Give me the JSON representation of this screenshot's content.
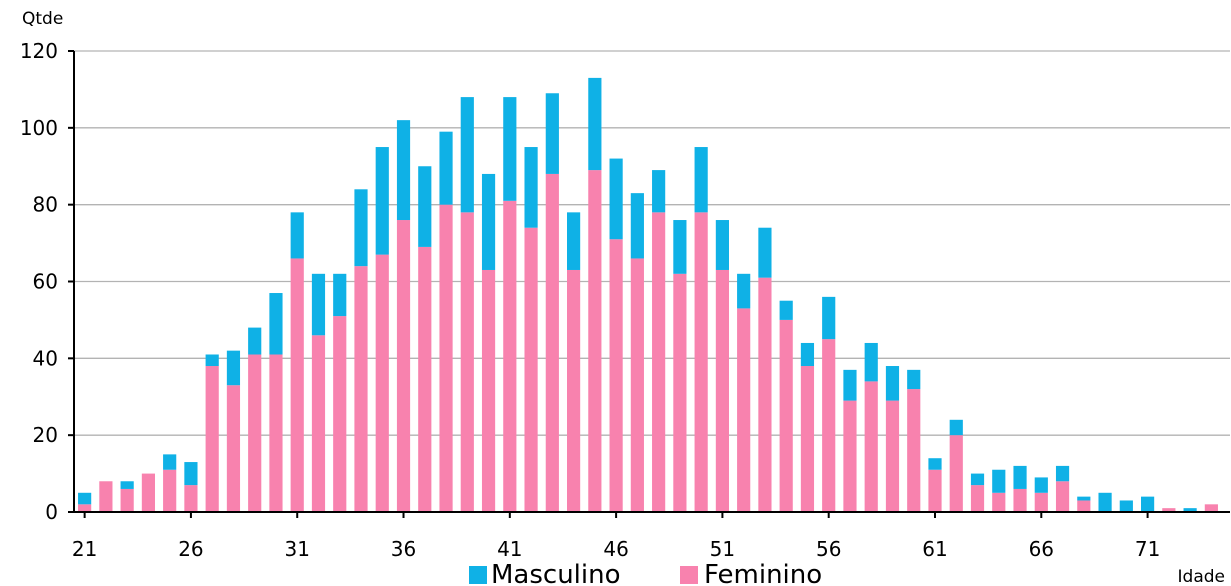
{
  "chart_data": {
    "type": "bar",
    "stacked": true,
    "ylabel": "Qtde",
    "xlabel": "Idade",
    "ylim": [
      0,
      120
    ],
    "yticks": [
      0,
      20,
      40,
      60,
      80,
      100,
      120
    ],
    "xtick_labels": [
      "21",
      "26",
      "31",
      "36",
      "41",
      "46",
      "51",
      "56",
      "61",
      "66",
      "71"
    ],
    "grid": true,
    "legend_position": "bottom",
    "categories": [
      21,
      22,
      23,
      24,
      25,
      26,
      27,
      28,
      29,
      30,
      31,
      32,
      33,
      34,
      35,
      36,
      37,
      38,
      39,
      40,
      41,
      42,
      43,
      44,
      45,
      46,
      47,
      48,
      49,
      50,
      51,
      52,
      53,
      54,
      55,
      56,
      57,
      58,
      59,
      60,
      61,
      62,
      63,
      64,
      65,
      66,
      67,
      68,
      69,
      70,
      71,
      72,
      73,
      74
    ],
    "series": [
      {
        "name": "Feminino",
        "color": "#F882AE",
        "values": [
          2,
          8,
          6,
          10,
          11,
          7,
          38,
          33,
          41,
          41,
          66,
          46,
          51,
          64,
          67,
          76,
          69,
          80,
          78,
          63,
          81,
          74,
          88,
          63,
          89,
          71,
          66,
          78,
          62,
          78,
          63,
          53,
          61,
          50,
          38,
          45,
          29,
          34,
          29,
          32,
          11,
          20,
          7,
          5,
          6,
          5,
          8,
          3,
          0,
          0,
          0,
          1,
          0,
          2
        ]
      },
      {
        "name": "Masculino",
        "color": "#0FB1E6",
        "values": [
          3,
          0,
          2,
          0,
          4,
          6,
          3,
          9,
          7,
          16,
          12,
          16,
          11,
          20,
          28,
          26,
          21,
          19,
          30,
          25,
          27,
          21,
          21,
          15,
          24,
          21,
          17,
          11,
          14,
          17,
          13,
          9,
          13,
          5,
          6,
          11,
          8,
          10,
          9,
          5,
          3,
          4,
          3,
          6,
          6,
          4,
          4,
          1,
          5,
          3,
          4,
          0,
          1,
          0
        ]
      }
    ],
    "legend": [
      {
        "name": "Masculino",
        "color": "#0FB1E6"
      },
      {
        "name": "Feminino",
        "color": "#F882AE"
      }
    ]
  }
}
